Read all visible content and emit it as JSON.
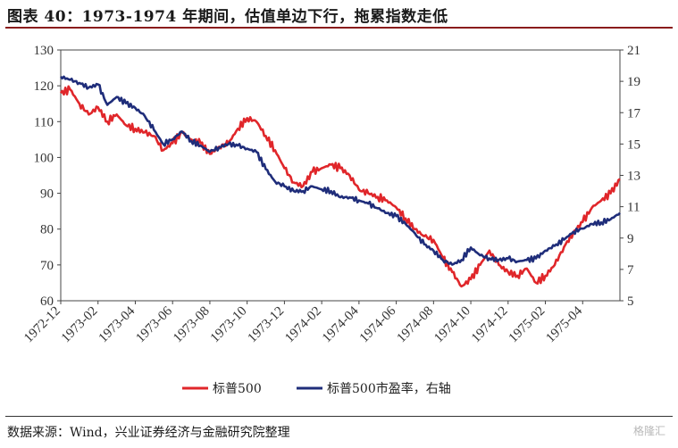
{
  "header": {
    "title": "图表 40：1973-1974 年期间，估值单边下行，拖累指数走低"
  },
  "footer": {
    "source": "数据来源：Wind，兴业证券经济与金融研究院整理",
    "watermark": "格隆汇"
  },
  "colors": {
    "sp500": "#e0262a",
    "pe": "#1f2d7a",
    "rule": "#8a1c1c"
  },
  "chart_data": {
    "type": "line",
    "title": "1973-1974 年期间，估值单边下行，拖累指数走低",
    "x_tick_labels": [
      "1972-12",
      "1973-02",
      "1973-04",
      "1973-06",
      "1973-08",
      "1973-10",
      "1973-12",
      "1974-02",
      "1974-04",
      "1974-06",
      "1974-08",
      "1974-10",
      "1974-12",
      "1975-02",
      "1975-04"
    ],
    "y_left": {
      "label": "",
      "range": [
        60,
        130
      ],
      "ticks": [
        60,
        70,
        80,
        90,
        100,
        110,
        120,
        130
      ]
    },
    "y_right": {
      "label": "",
      "range": [
        5,
        21
      ],
      "ticks": [
        5,
        7,
        9,
        11,
        13,
        15,
        17,
        19,
        21
      ]
    },
    "x_range_months": [
      0,
      30
    ],
    "series": [
      {
        "name": "标普500",
        "axis": "left",
        "x_months": [
          0,
          0.5,
          1,
          1.5,
          2,
          2.5,
          3,
          3.5,
          4,
          4.5,
          5,
          5.5,
          6,
          6.5,
          7,
          7.5,
          8,
          8.5,
          9,
          9.5,
          10,
          10.5,
          11,
          11.5,
          12,
          12.5,
          13,
          13.5,
          14,
          14.5,
          15,
          15.5,
          16,
          16.5,
          17,
          17.5,
          18,
          18.5,
          19,
          19.5,
          20,
          20.5,
          21,
          21.5,
          22,
          22.5,
          23,
          23.5,
          24,
          24.5,
          25,
          25.5,
          26,
          26.5,
          27,
          27.5,
          28,
          28.5,
          29,
          29.5,
          30
        ],
        "values": [
          118,
          119,
          115,
          112,
          114,
          110,
          112,
          109,
          108,
          107,
          106,
          102,
          104,
          107,
          105,
          104,
          101,
          103,
          104,
          108,
          111,
          110,
          106,
          102,
          97,
          93,
          92,
          96,
          97,
          98,
          97,
          95,
          91,
          90,
          89,
          88,
          86,
          83,
          80,
          78,
          77,
          72,
          68,
          64,
          66,
          70,
          74,
          70,
          68,
          67,
          69,
          65,
          67,
          70,
          75,
          79,
          82,
          86,
          88,
          90,
          94
        ]
      },
      {
        "name": "标普500市盈率，右轴",
        "axis": "right",
        "x_months": [
          0,
          0.5,
          1,
          1.5,
          2,
          2.5,
          3,
          3.5,
          4,
          4.5,
          5,
          5.5,
          6,
          6.5,
          7,
          7.5,
          8,
          8.5,
          9,
          9.5,
          10,
          10.5,
          11,
          11.5,
          12,
          12.5,
          13,
          13.5,
          14,
          14.5,
          15,
          15.5,
          16,
          16.5,
          17,
          17.5,
          18,
          18.5,
          19,
          19.5,
          20,
          20.5,
          21,
          21.5,
          22,
          22.5,
          23,
          23.5,
          24,
          24.5,
          25,
          25.5,
          26,
          26.5,
          27,
          27.5,
          28,
          28.5,
          29,
          29.5,
          30
        ],
        "values": [
          19.3,
          19.1,
          18.9,
          18.6,
          18.8,
          17.5,
          18,
          17.6,
          17.3,
          16.8,
          15.9,
          15,
          15.3,
          15.8,
          15.2,
          14.9,
          14.5,
          14.8,
          15,
          14.9,
          14.7,
          14.5,
          13.4,
          12.6,
          12.3,
          12,
          12,
          12.3,
          12.1,
          12,
          11.6,
          11.6,
          11.4,
          11.2,
          10.9,
          10.6,
          10.4,
          9.9,
          9.3,
          8.6,
          8.2,
          7.6,
          7.3,
          7.6,
          8.4,
          7.9,
          7.7,
          7.6,
          7.7,
          7.5,
          7.6,
          7.7,
          8.2,
          8.5,
          8.9,
          9.4,
          9.6,
          9.9,
          10,
          10.2,
          10.6
        ]
      }
    ],
    "legend": {
      "position": "bottom"
    }
  }
}
